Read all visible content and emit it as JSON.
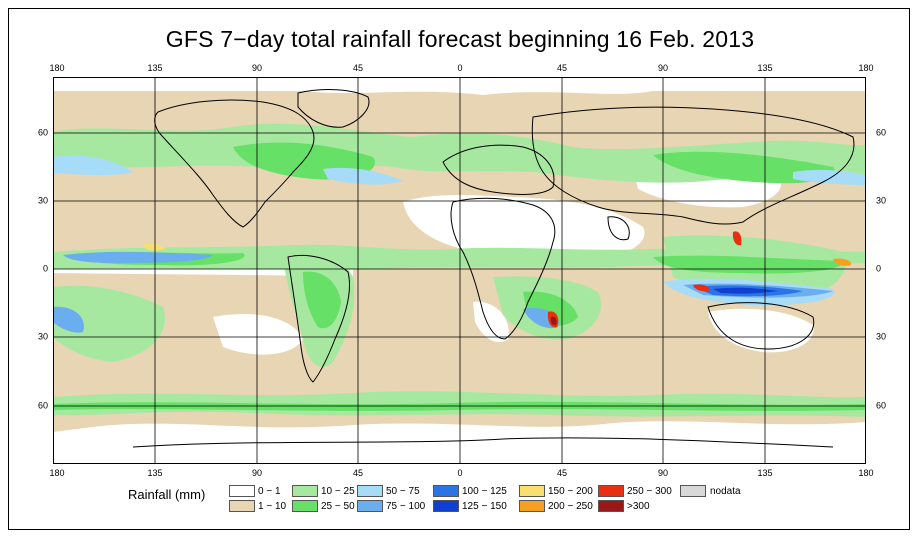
{
  "title": "GFS 7−day total rainfall forecast beginning 16 Feb. 2013",
  "axes": {
    "lon_ticks": [
      "180",
      "135",
      "90",
      "45",
      "0",
      "45",
      "90",
      "135",
      "180"
    ],
    "lat_ticks_left": [
      "60",
      "30",
      "0",
      "30",
      "60"
    ],
    "lat_ticks_right": [
      "60",
      "30",
      "0",
      "30",
      "60"
    ]
  },
  "legend": {
    "title": "Rainfall (mm)",
    "items": [
      {
        "label": "0 − 1",
        "color": "#ffffff"
      },
      {
        "label": "1 − 10",
        "color": "#e8d5b3"
      },
      {
        "label": "10 − 25",
        "color": "#a7e8a0"
      },
      {
        "label": "25 − 50",
        "color": "#66e066"
      },
      {
        "label": "50 − 75",
        "color": "#a6dcf7"
      },
      {
        "label": "75 − 100",
        "color": "#6aaef0"
      },
      {
        "label": "100 − 125",
        "color": "#2a74e8"
      },
      {
        "label": "125 − 150",
        "color": "#1040d0"
      },
      {
        "label": "150 − 200",
        "color": "#f8e070"
      },
      {
        "label": "200 − 250",
        "color": "#f5a020"
      },
      {
        "label": "250 − 300",
        "color": "#e83010"
      },
      {
        "label": ">300",
        "color": "#9a1818"
      },
      {
        "label": "nodata",
        "color": "#d8d8d8"
      }
    ]
  }
}
